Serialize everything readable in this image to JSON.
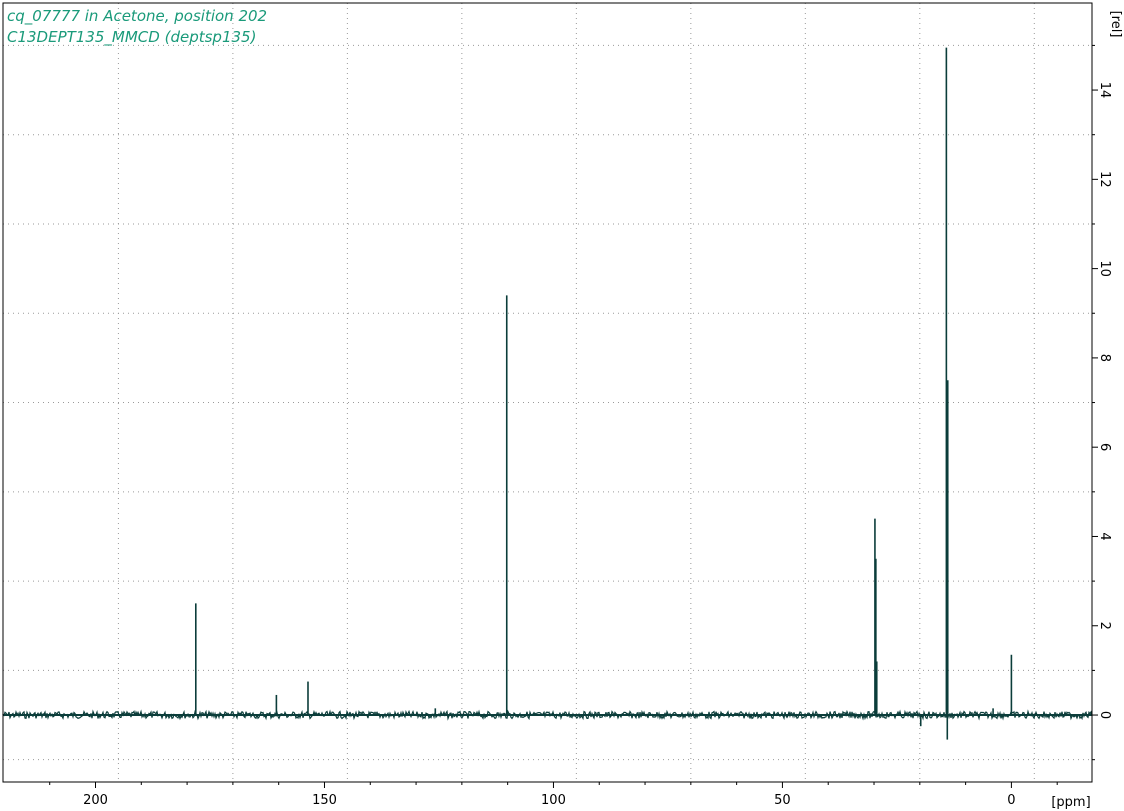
{
  "chart_data": {
    "type": "line",
    "title": "cq_07777 in Acetone, position 202",
    "subtitle": "C13DEPT135_MMCD (deptsp135)",
    "xlabel": "[ppm]",
    "ylabel": "[rel]",
    "x_reversed": true,
    "xlim": [
      -17.6,
      220.2
    ],
    "ylim": [
      -1.5,
      15.95
    ],
    "x_ticks": [
      200,
      150,
      100,
      50,
      0
    ],
    "y_ticks": [
      0,
      2,
      4,
      6,
      8,
      10,
      12,
      14
    ],
    "x_grid": [
      195,
      170,
      145,
      120,
      95,
      70,
      45,
      20,
      -5
    ],
    "y_grid": [
      -1,
      1,
      3,
      5,
      7,
      9,
      11,
      13,
      15
    ],
    "grid": true,
    "line_color": "#0b3d3a",
    "series": [
      {
        "peaks": [
          {
            "x": 178.1,
            "y": 2.5
          },
          {
            "x": 160.5,
            "y": 0.45
          },
          {
            "x": 153.6,
            "y": 0.75
          },
          {
            "x": 125.8,
            "y": 0.15
          },
          {
            "x": 110.2,
            "y": 9.4
          },
          {
            "x": 29.8,
            "y": 4.4
          },
          {
            "x": 29.6,
            "y": 3.5
          },
          {
            "x": 29.4,
            "y": 1.2
          },
          {
            "x": 14.2,
            "y": 14.95
          },
          {
            "x": 14.0,
            "y": -0.55
          },
          {
            "x": 13.9,
            "y": 7.5
          },
          {
            "x": 19.8,
            "y": -0.25
          },
          {
            "x": 4.0,
            "y": 0.15
          },
          {
            "x": 0.0,
            "y": 1.35
          }
        ]
      }
    ]
  }
}
